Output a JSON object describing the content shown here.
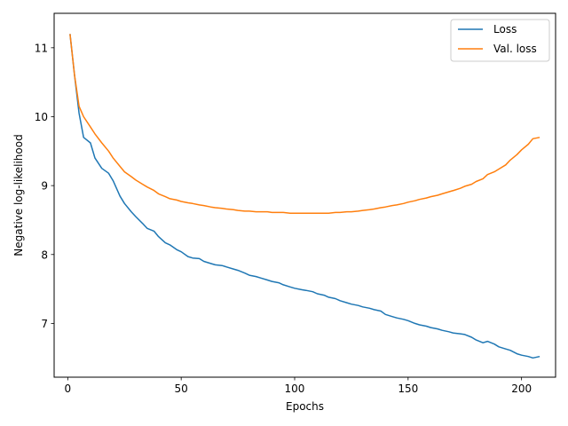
{
  "chart_data": {
    "type": "line",
    "xlabel": "Epochs",
    "ylabel": "Negative log-likelihood",
    "xlim": [
      -6,
      215
    ],
    "ylim": [
      6.22,
      11.5
    ],
    "xticks": [
      0,
      50,
      100,
      150,
      200
    ],
    "yticks": [
      7,
      8,
      9,
      10,
      11
    ],
    "grid": false,
    "legend_position": "top-right",
    "series": [
      {
        "name": "Loss",
        "color": "#1f77b4",
        "points": [
          [
            1,
            11.2
          ],
          [
            3,
            10.6
          ],
          [
            5,
            10.05
          ],
          [
            7,
            9.7
          ],
          [
            10,
            9.62
          ],
          [
            12,
            9.4
          ],
          [
            15,
            9.25
          ],
          [
            18,
            9.18
          ],
          [
            20,
            9.07
          ],
          [
            23,
            8.85
          ],
          [
            25,
            8.74
          ],
          [
            28,
            8.62
          ],
          [
            30,
            8.55
          ],
          [
            33,
            8.45
          ],
          [
            35,
            8.38
          ],
          [
            38,
            8.34
          ],
          [
            40,
            8.26
          ],
          [
            43,
            8.17
          ],
          [
            45,
            8.14
          ],
          [
            48,
            8.07
          ],
          [
            50,
            8.04
          ],
          [
            53,
            7.97
          ],
          [
            55,
            7.95
          ],
          [
            58,
            7.94
          ],
          [
            60,
            7.9
          ],
          [
            63,
            7.87
          ],
          [
            65,
            7.85
          ],
          [
            68,
            7.84
          ],
          [
            70,
            7.82
          ],
          [
            73,
            7.79
          ],
          [
            75,
            7.77
          ],
          [
            78,
            7.73
          ],
          [
            80,
            7.7
          ],
          [
            83,
            7.68
          ],
          [
            85,
            7.66
          ],
          [
            88,
            7.63
          ],
          [
            90,
            7.61
          ],
          [
            93,
            7.59
          ],
          [
            95,
            7.56
          ],
          [
            98,
            7.53
          ],
          [
            100,
            7.51
          ],
          [
            103,
            7.49
          ],
          [
            105,
            7.48
          ],
          [
            108,
            7.46
          ],
          [
            110,
            7.43
          ],
          [
            113,
            7.41
          ],
          [
            115,
            7.38
          ],
          [
            118,
            7.36
          ],
          [
            120,
            7.33
          ],
          [
            123,
            7.3
          ],
          [
            125,
            7.28
          ],
          [
            128,
            7.26
          ],
          [
            130,
            7.24
          ],
          [
            133,
            7.22
          ],
          [
            135,
            7.2
          ],
          [
            138,
            7.18
          ],
          [
            140,
            7.13
          ],
          [
            143,
            7.1
          ],
          [
            145,
            7.08
          ],
          [
            148,
            7.06
          ],
          [
            150,
            7.04
          ],
          [
            153,
            7.0
          ],
          [
            155,
            6.98
          ],
          [
            158,
            6.96
          ],
          [
            160,
            6.94
          ],
          [
            163,
            6.92
          ],
          [
            165,
            6.9
          ],
          [
            168,
            6.88
          ],
          [
            170,
            6.86
          ],
          [
            173,
            6.85
          ],
          [
            175,
            6.84
          ],
          [
            178,
            6.8
          ],
          [
            180,
            6.76
          ],
          [
            183,
            6.72
          ],
          [
            185,
            6.74
          ],
          [
            188,
            6.7
          ],
          [
            190,
            6.66
          ],
          [
            193,
            6.63
          ],
          [
            195,
            6.61
          ],
          [
            198,
            6.56
          ],
          [
            200,
            6.54
          ],
          [
            203,
            6.52
          ],
          [
            205,
            6.5
          ],
          [
            208,
            6.52
          ]
        ]
      },
      {
        "name": "Val. loss",
        "color": "#ff7f0e",
        "points": [
          [
            1,
            11.2
          ],
          [
            3,
            10.6
          ],
          [
            5,
            10.15
          ],
          [
            7,
            10.0
          ],
          [
            10,
            9.85
          ],
          [
            12,
            9.75
          ],
          [
            15,
            9.62
          ],
          [
            18,
            9.5
          ],
          [
            20,
            9.4
          ],
          [
            23,
            9.28
          ],
          [
            25,
            9.2
          ],
          [
            28,
            9.13
          ],
          [
            30,
            9.08
          ],
          [
            33,
            9.02
          ],
          [
            35,
            8.98
          ],
          [
            38,
            8.93
          ],
          [
            40,
            8.88
          ],
          [
            43,
            8.84
          ],
          [
            45,
            8.81
          ],
          [
            48,
            8.79
          ],
          [
            50,
            8.77
          ],
          [
            53,
            8.75
          ],
          [
            55,
            8.74
          ],
          [
            58,
            8.72
          ],
          [
            60,
            8.71
          ],
          [
            63,
            8.69
          ],
          [
            65,
            8.68
          ],
          [
            68,
            8.67
          ],
          [
            70,
            8.66
          ],
          [
            73,
            8.65
          ],
          [
            75,
            8.64
          ],
          [
            78,
            8.63
          ],
          [
            80,
            8.63
          ],
          [
            83,
            8.62
          ],
          [
            85,
            8.62
          ],
          [
            88,
            8.62
          ],
          [
            90,
            8.61
          ],
          [
            93,
            8.61
          ],
          [
            95,
            8.61
          ],
          [
            98,
            8.6
          ],
          [
            100,
            8.6
          ],
          [
            103,
            8.6
          ],
          [
            105,
            8.6
          ],
          [
            108,
            8.6
          ],
          [
            110,
            8.6
          ],
          [
            113,
            8.6
          ],
          [
            115,
            8.6
          ],
          [
            118,
            8.61
          ],
          [
            120,
            8.61
          ],
          [
            123,
            8.62
          ],
          [
            125,
            8.62
          ],
          [
            128,
            8.63
          ],
          [
            130,
            8.64
          ],
          [
            133,
            8.65
          ],
          [
            135,
            8.66
          ],
          [
            138,
            8.68
          ],
          [
            140,
            8.69
          ],
          [
            143,
            8.71
          ],
          [
            145,
            8.72
          ],
          [
            148,
            8.74
          ],
          [
            150,
            8.76
          ],
          [
            153,
            8.78
          ],
          [
            155,
            8.8
          ],
          [
            158,
            8.82
          ],
          [
            160,
            8.84
          ],
          [
            163,
            8.86
          ],
          [
            165,
            8.88
          ],
          [
            168,
            8.91
          ],
          [
            170,
            8.93
          ],
          [
            173,
            8.96
          ],
          [
            175,
            8.99
          ],
          [
            178,
            9.02
          ],
          [
            180,
            9.06
          ],
          [
            183,
            9.1
          ],
          [
            185,
            9.16
          ],
          [
            188,
            9.2
          ],
          [
            190,
            9.24
          ],
          [
            193,
            9.3
          ],
          [
            195,
            9.37
          ],
          [
            198,
            9.45
          ],
          [
            200,
            9.52
          ],
          [
            203,
            9.6
          ],
          [
            205,
            9.68
          ],
          [
            208,
            9.7
          ]
        ]
      }
    ]
  }
}
